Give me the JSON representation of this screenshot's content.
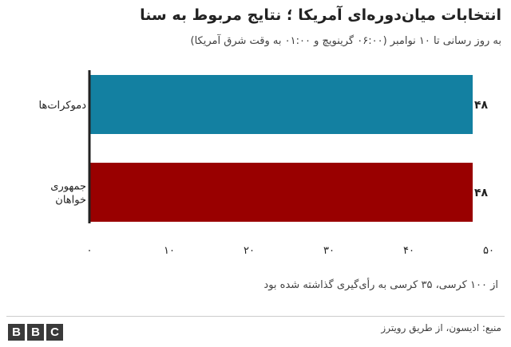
{
  "title": "انتخابات میان‌دوره‌ای آمریکا ؛ نتایج مربوط به سنا",
  "subtitle": "به روز رسانی تا ۱۰ نوامبر  (۰۶:۰۰ گرینویچ و ۰۱:۰۰ به وقت شرق آمریکا)",
  "note": "از ۱۰۰ کرسی، ۳۵ کرسی به رأی‌گیری گذاشته شده بود",
  "source": "منبع: ادیسون، از طریق رویترز",
  "logo": [
    "B",
    "B",
    "C"
  ],
  "colors": {
    "democrats": "#1380a1",
    "republicans": "#990000",
    "axis": "#222222"
  },
  "chart_data": {
    "type": "bar",
    "orientation": "horizontal",
    "categories": [
      "دموکرات‌ها",
      "جمهوری خواهان"
    ],
    "values": [
      48,
      48
    ],
    "value_labels": [
      "۴۸",
      "۴۸"
    ],
    "xlim": [
      0,
      50
    ],
    "ticks": [
      0,
      10,
      20,
      30,
      40,
      50
    ],
    "tick_labels": [
      "۰",
      "۱۰",
      "۲۰",
      "۳۰",
      "۴۰",
      "۵۰"
    ],
    "grid": false,
    "legend": "none"
  }
}
